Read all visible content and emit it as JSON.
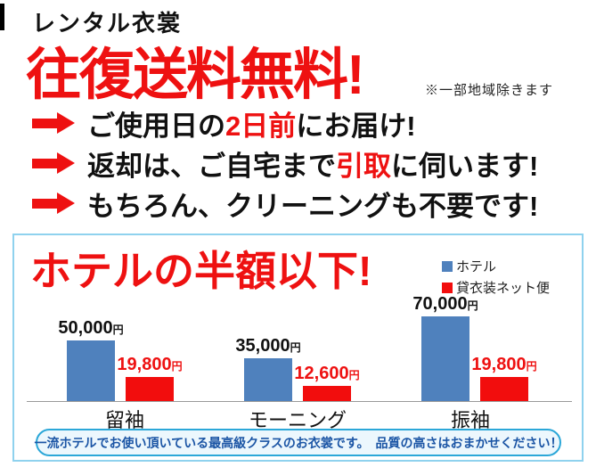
{
  "header": {
    "small_title": "レンタル衣裳",
    "headline": "往復送料無料!",
    "note": "※一部地域除きます"
  },
  "bullets": [
    {
      "pre": "ご使用日の",
      "em": "2日前",
      "post": "にお届け!"
    },
    {
      "pre": "返却は、ご自宅まで",
      "em": "引取",
      "post": "に伺います!"
    },
    {
      "pre": "もちろん、クリーニングも不要です!",
      "em": "",
      "post": ""
    }
  ],
  "chart_data": {
    "type": "bar",
    "title": "ホテルの半額以下!",
    "categories": [
      "留袖",
      "モーニング",
      "振袖"
    ],
    "series": [
      {
        "name": "ホテル",
        "color": "#4f81bd",
        "label_color": "#111111",
        "values": [
          50000,
          35000,
          70000
        ]
      },
      {
        "name": "貸衣装ネット便",
        "color": "#f20d0d",
        "label_color": "#ee1111",
        "values": [
          19800,
          12600,
          19800
        ]
      }
    ],
    "unit": "円",
    "ylim": [
      0,
      70000
    ],
    "grid": false,
    "legend_position": "top-right",
    "value_labels": true
  },
  "footer": {
    "banner": "一流ホテルでお使い頂いている最高級クラスのお衣裳です。　品質の高さはおまかせください！"
  },
  "colors": {
    "accent_red": "#ee1111",
    "bar_blue": "#4f81bd",
    "bar_red": "#f20d0d",
    "panel_border": "#8fd2ee",
    "pill_border": "#2ba7d8",
    "pill_bg": "#ecf7fd",
    "pill_text": "#1b55a5"
  }
}
